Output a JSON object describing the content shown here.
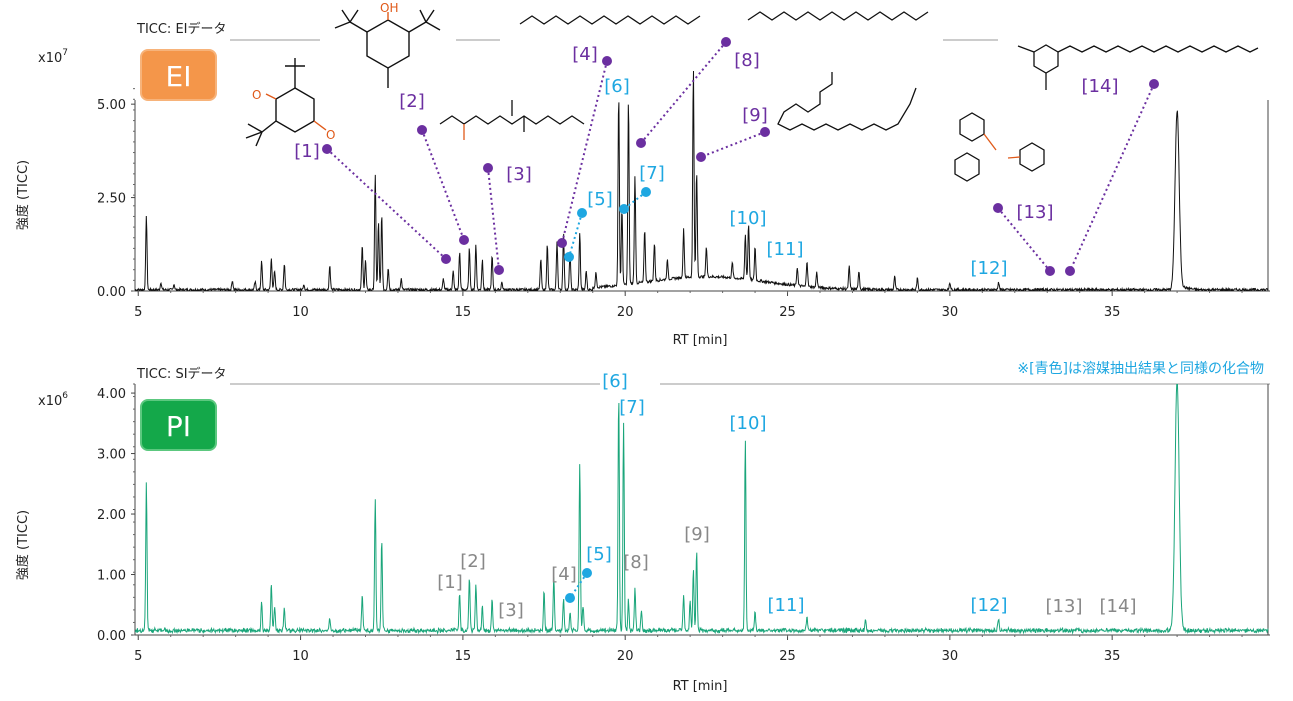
{
  "colors": {
    "ei_trace": "#111111",
    "pi_trace": "#1aa57a",
    "purple": "#6b2fa0",
    "blue": "#1ea7e1",
    "gray": "#888888",
    "ei_badge": "#f4964a",
    "pi_badge": "#14a84a",
    "structure_o": "#e05a1a"
  },
  "chart_data": [
    {
      "type": "line",
      "panel": "EI",
      "badge": "EI",
      "title": "TICC: EIデータ",
      "xlabel": "RT [min]",
      "ylabel": "強度 (TICC)",
      "y_multiplier": "x10",
      "y_exponent": "7",
      "xlim": [
        4.9,
        39.8
      ],
      "ylim": [
        0,
        5.7
      ],
      "x_ticks": [
        "5",
        "10",
        "15",
        "20",
        "25",
        "30",
        "35"
      ],
      "y_ticks": [
        "0.00",
        "2.50",
        "5.00"
      ],
      "peaks": [
        [
          5.25,
          2.0
        ],
        [
          5.7,
          0.2
        ],
        [
          6.1,
          0.15
        ],
        [
          7.9,
          0.25
        ],
        [
          8.6,
          0.2
        ],
        [
          8.8,
          0.75
        ],
        [
          9.1,
          0.85
        ],
        [
          9.2,
          0.5
        ],
        [
          9.5,
          0.7
        ],
        [
          10.1,
          0.15
        ],
        [
          10.9,
          0.65
        ],
        [
          11.9,
          1.2
        ],
        [
          12.0,
          0.8
        ],
        [
          12.3,
          3.05
        ],
        [
          12.4,
          1.8
        ],
        [
          12.5,
          2.0
        ],
        [
          12.7,
          0.6
        ],
        [
          13.1,
          0.3
        ],
        [
          14.4,
          0.3
        ],
        [
          14.7,
          0.5
        ],
        [
          14.9,
          1.0
        ],
        [
          15.2,
          1.1
        ],
        [
          15.4,
          1.2
        ],
        [
          15.6,
          0.8
        ],
        [
          15.9,
          0.9
        ],
        [
          16.2,
          0.2
        ],
        [
          17.4,
          0.8
        ],
        [
          17.6,
          1.2
        ],
        [
          17.9,
          1.3
        ],
        [
          18.1,
          1.5
        ],
        [
          18.3,
          1.0
        ],
        [
          18.6,
          1.5
        ],
        [
          18.8,
          0.5
        ],
        [
          19.1,
          0.4
        ],
        [
          19.8,
          5.1
        ],
        [
          19.9,
          2.0
        ],
        [
          20.1,
          4.9
        ],
        [
          20.3,
          2.9
        ],
        [
          20.6,
          1.4
        ],
        [
          20.9,
          1.0
        ],
        [
          21.3,
          0.5
        ],
        [
          21.8,
          1.3
        ],
        [
          22.1,
          5.6
        ],
        [
          22.2,
          2.8
        ],
        [
          22.5,
          0.8
        ],
        [
          23.3,
          0.4
        ],
        [
          23.7,
          1.2
        ],
        [
          23.8,
          1.5
        ],
        [
          24.0,
          0.9
        ],
        [
          25.3,
          0.5
        ],
        [
          25.6,
          0.7
        ],
        [
          25.9,
          0.4
        ],
        [
          26.9,
          0.6
        ],
        [
          27.2,
          0.5
        ],
        [
          28.3,
          0.35
        ],
        [
          29.0,
          0.3
        ],
        [
          30.0,
          0.2
        ],
        [
          31.5,
          0.2
        ],
        [
          37.0,
          4.75
        ]
      ],
      "labels": [
        {
          "text": "[1]",
          "color": "purple"
        },
        {
          "text": "[2]",
          "color": "purple"
        },
        {
          "text": "[3]",
          "color": "purple"
        },
        {
          "text": "[4]",
          "color": "purple"
        },
        {
          "text": "[5]",
          "color": "blue"
        },
        {
          "text": "[6]",
          "color": "blue"
        },
        {
          "text": "[7]",
          "color": "blue"
        },
        {
          "text": "[8]",
          "color": "purple"
        },
        {
          "text": "[9]",
          "color": "purple"
        },
        {
          "text": "[10]",
          "color": "blue"
        },
        {
          "text": "[11]",
          "color": "blue"
        },
        {
          "text": "[12]",
          "color": "blue"
        },
        {
          "text": "[13]",
          "color": "purple"
        },
        {
          "text": "[14]",
          "color": "purple"
        }
      ]
    },
    {
      "type": "line",
      "panel": "PI",
      "badge": "PI",
      "title": "TICC: SIデータ",
      "xlabel": "RT [min]",
      "ylabel": "強度 (TICC)",
      "y_multiplier": "x10",
      "y_exponent": "6",
      "note": "※[青色]は溶媒抽出結果と同様の化合物",
      "xlim": [
        4.9,
        39.8
      ],
      "ylim": [
        0,
        4.15
      ],
      "x_ticks": [
        "5",
        "10",
        "15",
        "20",
        "25",
        "30",
        "35"
      ],
      "y_ticks": [
        "0.00",
        "1.00",
        "2.00",
        "3.00",
        "4.00"
      ],
      "peaks": [
        [
          5.25,
          2.45
        ],
        [
          8.8,
          0.45
        ],
        [
          9.1,
          0.8
        ],
        [
          9.2,
          0.4
        ],
        [
          9.5,
          0.35
        ],
        [
          10.9,
          0.2
        ],
        [
          11.9,
          0.6
        ],
        [
          12.3,
          2.15
        ],
        [
          12.5,
          1.5
        ],
        [
          14.9,
          0.6
        ],
        [
          15.2,
          0.9
        ],
        [
          15.4,
          0.75
        ],
        [
          15.6,
          0.4
        ],
        [
          15.9,
          0.5
        ],
        [
          17.5,
          0.65
        ],
        [
          17.8,
          0.9
        ],
        [
          18.1,
          0.5
        ],
        [
          18.3,
          0.3
        ],
        [
          18.6,
          2.75
        ],
        [
          18.7,
          0.4
        ],
        [
          19.8,
          3.9
        ],
        [
          19.95,
          3.45
        ],
        [
          20.1,
          0.5
        ],
        [
          20.3,
          0.7
        ],
        [
          20.5,
          0.3
        ],
        [
          21.8,
          0.6
        ],
        [
          22.0,
          0.5
        ],
        [
          22.1,
          1.0
        ],
        [
          22.2,
          1.3
        ],
        [
          23.7,
          3.15
        ],
        [
          24.0,
          0.3
        ],
        [
          25.6,
          0.25
        ],
        [
          27.4,
          0.15
        ],
        [
          31.5,
          0.2
        ],
        [
          37.0,
          4.15
        ]
      ],
      "labels": [
        {
          "text": "[1]",
          "color": "gray"
        },
        {
          "text": "[2]",
          "color": "gray"
        },
        {
          "text": "[3]",
          "color": "gray"
        },
        {
          "text": "[4]",
          "color": "gray"
        },
        {
          "text": "[5]",
          "color": "blue"
        },
        {
          "text": "[6]",
          "color": "blue"
        },
        {
          "text": "[7]",
          "color": "blue"
        },
        {
          "text": "[8]",
          "color": "gray"
        },
        {
          "text": "[9]",
          "color": "gray"
        },
        {
          "text": "[10]",
          "color": "blue"
        },
        {
          "text": "[11]",
          "color": "blue"
        },
        {
          "text": "[12]",
          "color": "blue"
        },
        {
          "text": "[13]",
          "color": "gray"
        },
        {
          "text": "[14]",
          "color": "gray"
        }
      ]
    }
  ]
}
